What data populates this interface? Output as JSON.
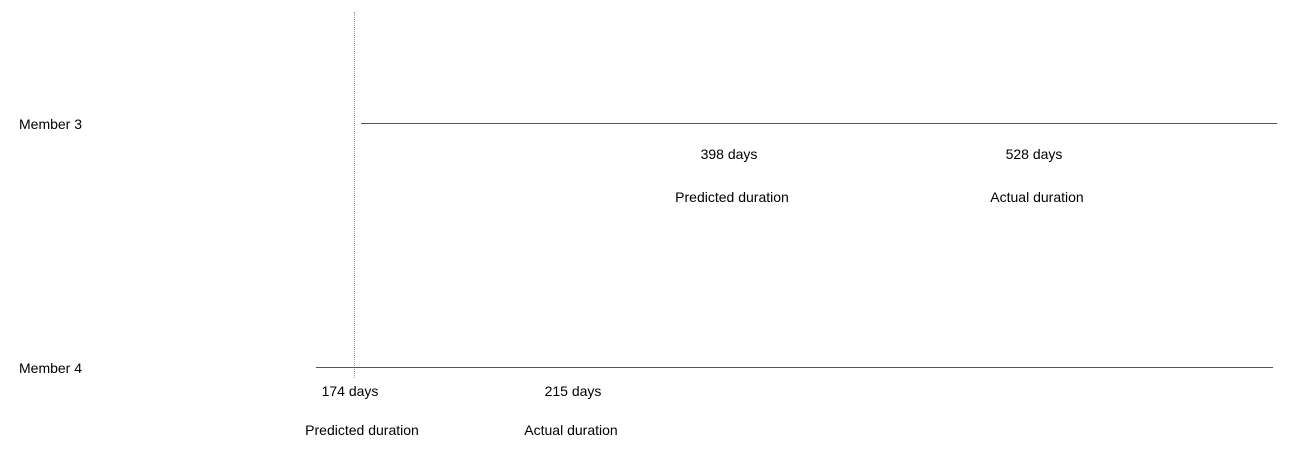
{
  "members": [
    {
      "name": "Member 3",
      "predicted": {
        "value": "398 days",
        "label": "Predicted duration"
      },
      "actual": {
        "value": "528 days",
        "label": "Actual duration"
      }
    },
    {
      "name": "Member 4",
      "predicted": {
        "value": "174 days",
        "label": "Predicted duration"
      },
      "actual": {
        "value": "215 days",
        "label": "Actual duration"
      }
    }
  ],
  "colors": {
    "line": "#555555",
    "marker": "#9a9a9a",
    "text": "#000000"
  }
}
